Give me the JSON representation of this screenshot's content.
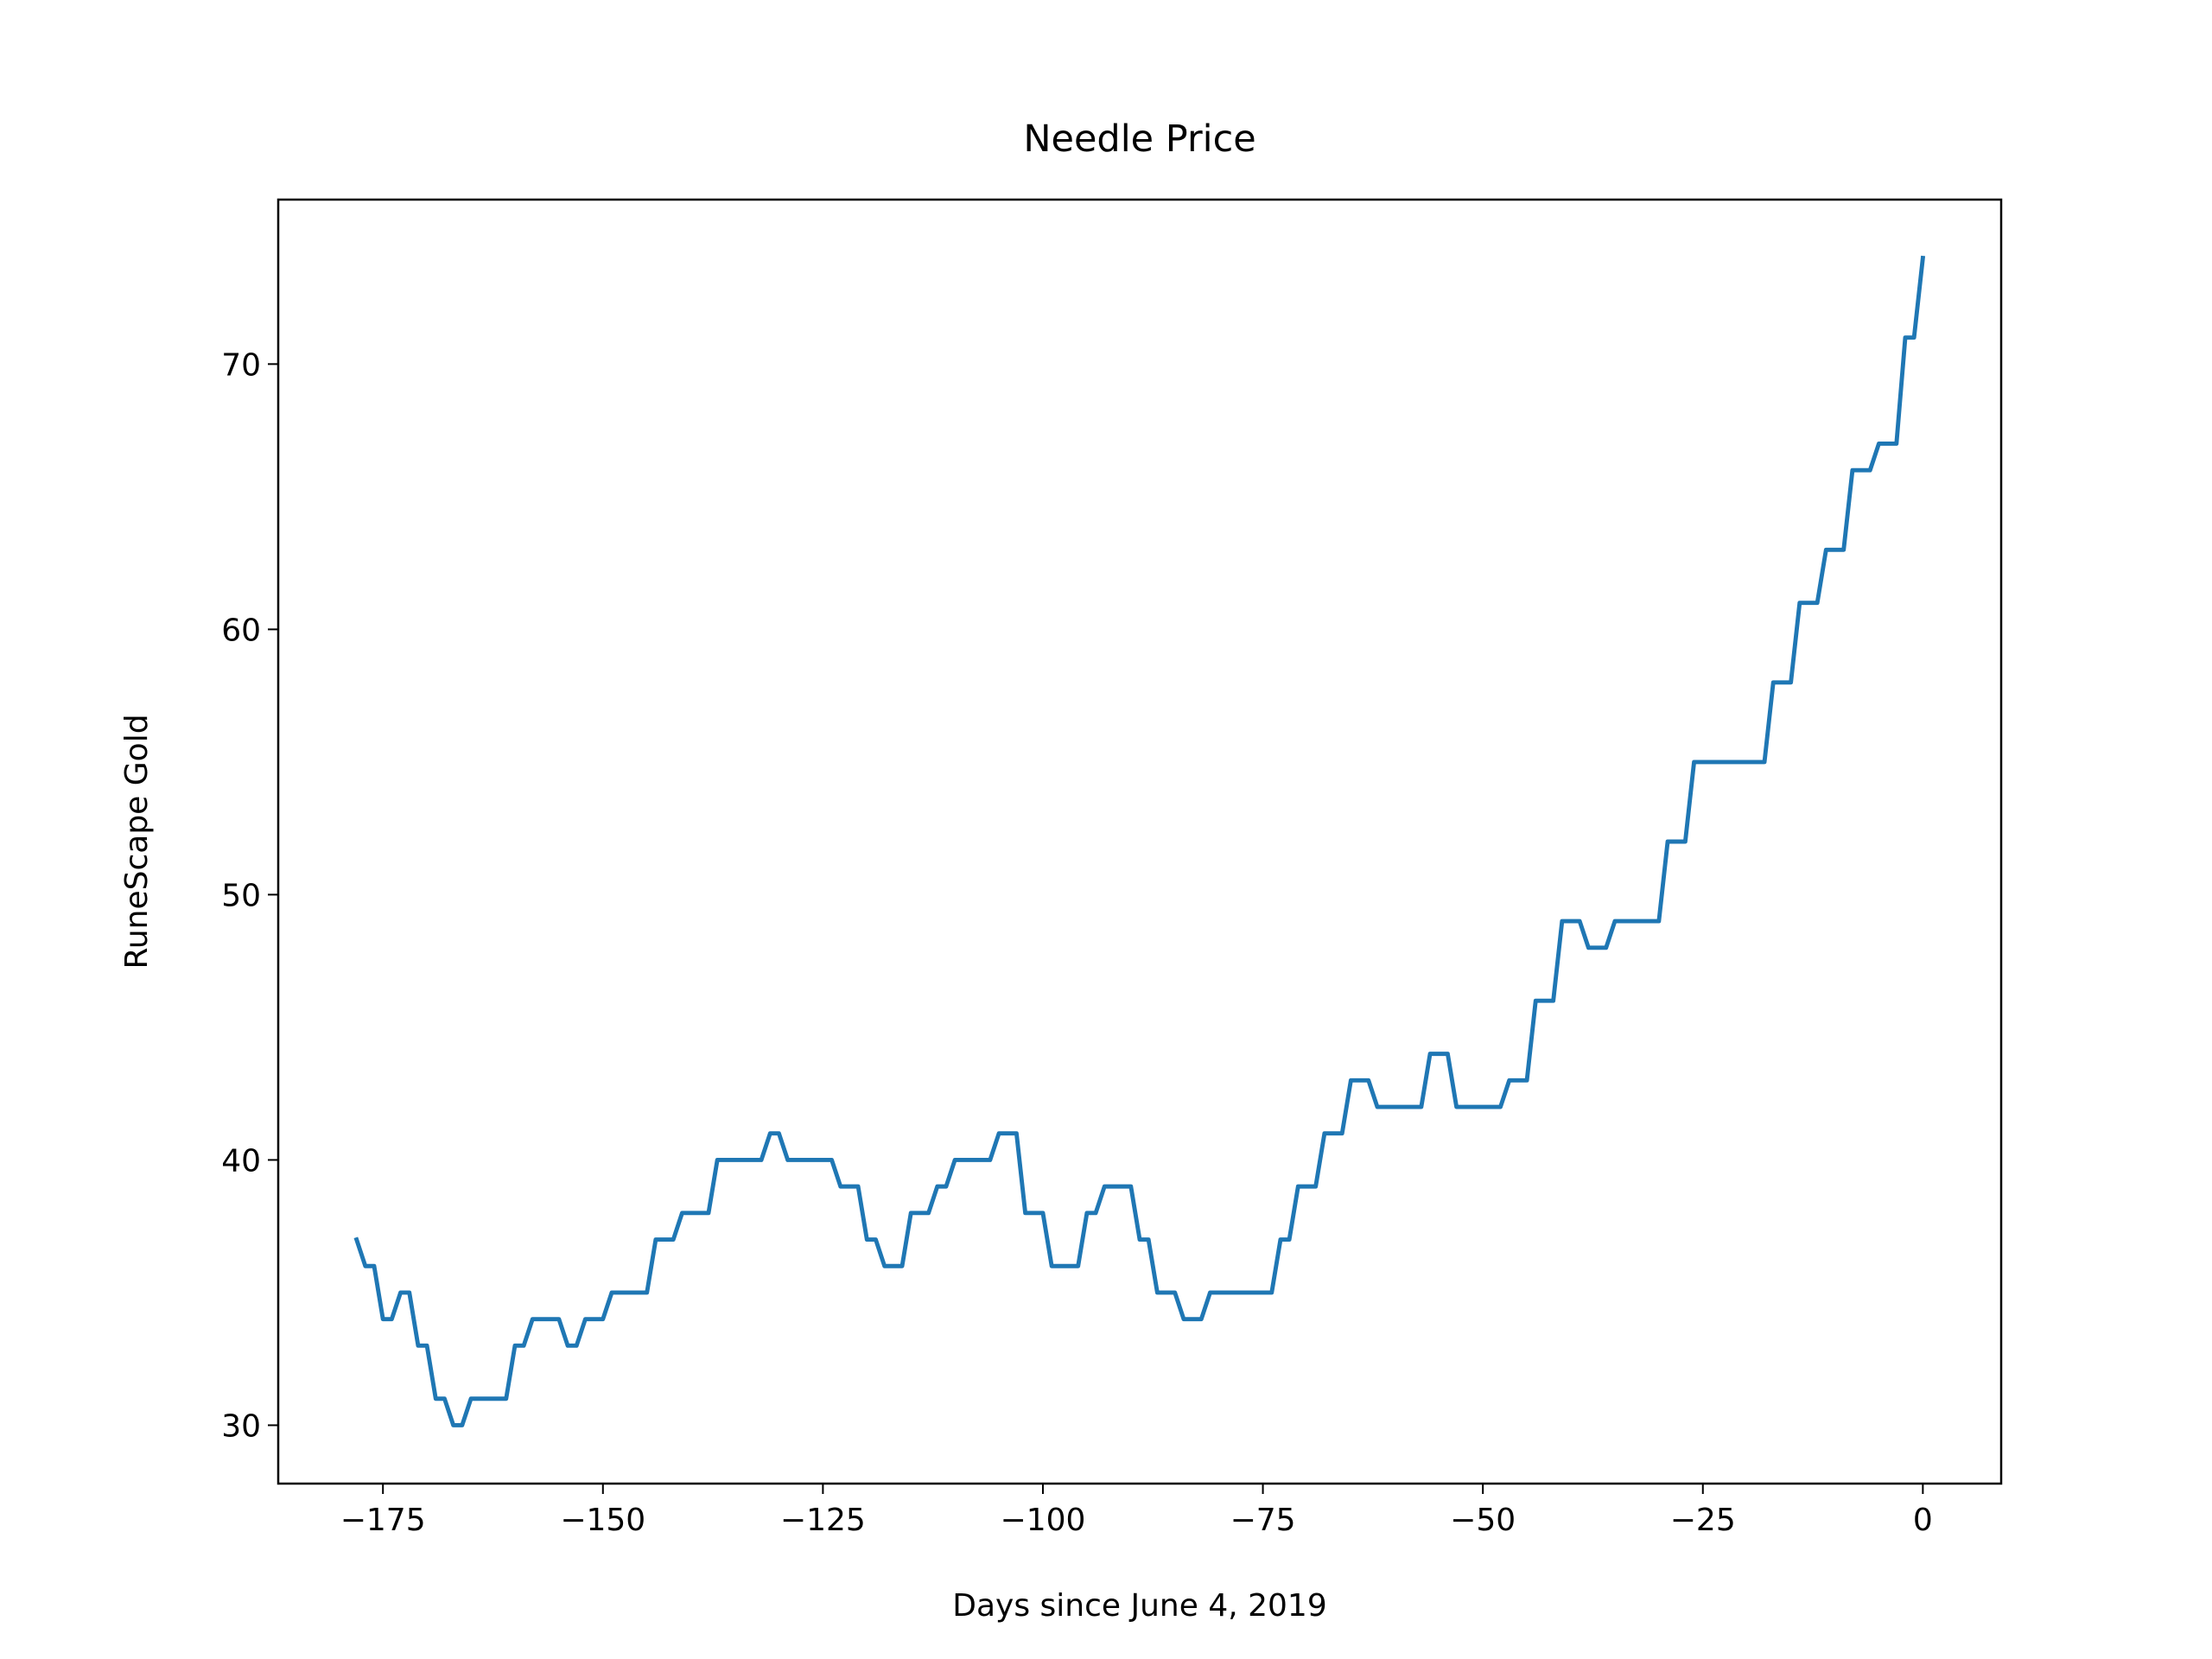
{
  "chart_data": {
    "type": "line",
    "title": "Needle Price",
    "x_label": "Days since June 4, 2019",
    "y_label": "RuneScape Gold",
    "x": [
      -178,
      -177,
      -176,
      -175,
      -174,
      -173,
      -172,
      -171,
      -170,
      -169,
      -168,
      -167,
      -166,
      -165,
      -164,
      -163,
      -162,
      -161,
      -160,
      -159,
      -158,
      -157,
      -156,
      -155,
      -154,
      -153,
      -152,
      -151,
      -150,
      -149,
      -148,
      -147,
      -146,
      -145,
      -144,
      -143,
      -142,
      -141,
      -140,
      -139,
      -138,
      -137,
      -136,
      -135,
      -134,
      -133,
      -132,
      -131,
      -130,
      -129,
      -128,
      -127,
      -126,
      -125,
      -124,
      -123,
      -122,
      -121,
      -120,
      -119,
      -118,
      -117,
      -116,
      -115,
      -114,
      -113,
      -112,
      -111,
      -110,
      -109,
      -108,
      -107,
      -106,
      -105,
      -104,
      -103,
      -102,
      -101,
      -100,
      -99,
      -98,
      -97,
      -96,
      -95,
      -94,
      -93,
      -92,
      -91,
      -90,
      -89,
      -88,
      -87,
      -86,
      -85,
      -84,
      -83,
      -82,
      -81,
      -80,
      -79,
      -78,
      -77,
      -76,
      -75,
      -74,
      -73,
      -72,
      -71,
      -70,
      -69,
      -68,
      -67,
      -66,
      -65,
      -64,
      -63,
      -62,
      -61,
      -60,
      -59,
      -58,
      -57,
      -56,
      -55,
      -54,
      -53,
      -52,
      -51,
      -50,
      -49,
      -48,
      -47,
      -46,
      -45,
      -44,
      -43,
      -42,
      -41,
      -40,
      -39,
      -38,
      -37,
      -36,
      -35,
      -34,
      -33,
      -32,
      -31,
      -30,
      -29,
      -28,
      -27,
      -26,
      -25,
      -24,
      -23,
      -22,
      -21,
      -20,
      -19,
      -18,
      -17,
      -16,
      -15,
      -14,
      -13,
      -12,
      -11,
      -10,
      -9,
      -8,
      -7,
      -6,
      -5,
      -4,
      -3,
      -2,
      -1,
      0
    ],
    "series": [
      {
        "name": "Needle",
        "color": "#1f77b4",
        "values": [
          37,
          36,
          36,
          34,
          34,
          35,
          35,
          33,
          33,
          31,
          31,
          30,
          30,
          31,
          31,
          31,
          31,
          31,
          33,
          33,
          34,
          34,
          34,
          34,
          33,
          33,
          34,
          34,
          34,
          35,
          35,
          35,
          35,
          35,
          37,
          37,
          37,
          38,
          38,
          38,
          38,
          40,
          40,
          40,
          40,
          40,
          40,
          41,
          41,
          40,
          40,
          40,
          40,
          40,
          40,
          39,
          39,
          39,
          37,
          37,
          36,
          36,
          36,
          38,
          38,
          38,
          39,
          39,
          40,
          40,
          40,
          40,
          40,
          41,
          41,
          41,
          38,
          38,
          38,
          36,
          36,
          36,
          36,
          38,
          38,
          39,
          39,
          39,
          39,
          37,
          37,
          35,
          35,
          35,
          34,
          34,
          34,
          35,
          35,
          35,
          35,
          35,
          35,
          35,
          35,
          37,
          37,
          39,
          39,
          39,
          41,
          41,
          41,
          43,
          43,
          43,
          42,
          42,
          42,
          42,
          42,
          42,
          44,
          44,
          44,
          42,
          42,
          42,
          42,
          42,
          42,
          43,
          43,
          43,
          46,
          46,
          46,
          49,
          49,
          49,
          48,
          48,
          48,
          49,
          49,
          49,
          49,
          49,
          49,
          52,
          52,
          52,
          55,
          55,
          55,
          55,
          55,
          55,
          55,
          55,
          55,
          58,
          58,
          58,
          61,
          61,
          61,
          63,
          63,
          63,
          66,
          66,
          66,
          67,
          67,
          67,
          71,
          71,
          74
        ]
      }
    ],
    "xlim": [
      -186.9,
      8.9
    ],
    "ylim": [
      27.8,
      76.2
    ],
    "xticks": [
      {
        "value": -175,
        "label": "−175"
      },
      {
        "value": -150,
        "label": "−150"
      },
      {
        "value": -125,
        "label": "−125"
      },
      {
        "value": -100,
        "label": "−100"
      },
      {
        "value": -75,
        "label": "−75"
      },
      {
        "value": -50,
        "label": "−50"
      },
      {
        "value": -25,
        "label": "−25"
      },
      0
    ],
    "yticks": [
      30,
      40,
      50,
      60,
      70
    ],
    "grid": false
  }
}
